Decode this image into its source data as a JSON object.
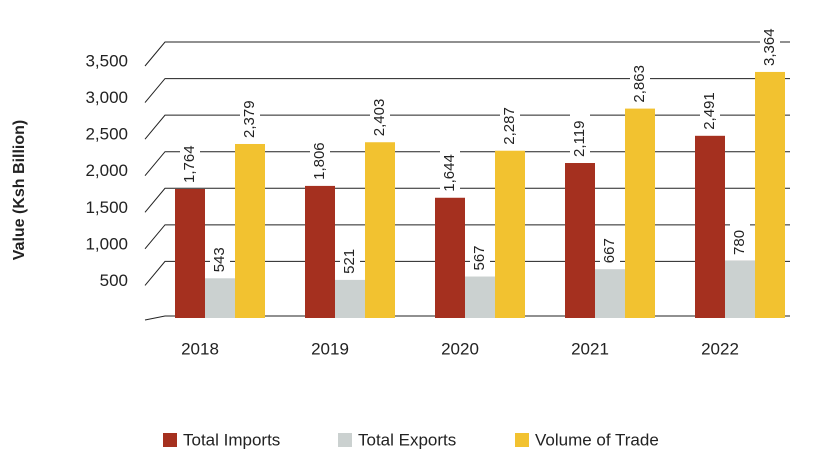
{
  "chart_data": {
    "type": "bar",
    "y_label": "Value (Ksh Billion)",
    "categories": [
      "2018",
      "2019",
      "2020",
      "2021",
      "2022"
    ],
    "series": [
      {
        "name": "Total Imports",
        "color": "#a5301f",
        "values": [
          1764,
          1806,
          1644,
          2119,
          2491
        ],
        "value_labels": [
          "1,764",
          "1,806",
          "1,644",
          "2,119",
          "2,491"
        ]
      },
      {
        "name": "Total Exports",
        "color": "#cbd1d0",
        "values": [
          543,
          521,
          567,
          667,
          780
        ],
        "value_labels": [
          "543",
          "521",
          "567",
          "667",
          "780"
        ]
      },
      {
        "name": "Volume of Trade",
        "color": "#f2c230",
        "values": [
          2379,
          2403,
          2287,
          2863,
          3364
        ],
        "value_labels": [
          "2,379",
          "2,403",
          "2,287",
          "2,863",
          "3,364"
        ]
      }
    ],
    "ylim": [
      0,
      3500
    ],
    "yticks": [
      {
        "value": 500,
        "label": "500"
      },
      {
        "value": 1000,
        "label": "1,000"
      },
      {
        "value": 1500,
        "label": "1,500"
      },
      {
        "value": 2000,
        "label": "2,000"
      },
      {
        "value": 2500,
        "label": "2,500"
      },
      {
        "value": 3000,
        "label": "3,000"
      },
      {
        "value": 3500,
        "label": "3,500"
      }
    ],
    "grid": true,
    "legend": "bottom"
  }
}
